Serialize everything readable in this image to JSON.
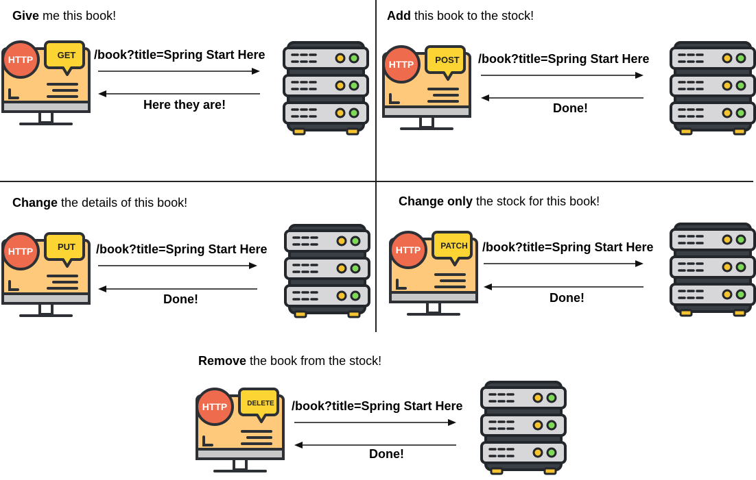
{
  "panels": [
    {
      "id": "get",
      "title_bold": "Give",
      "title_rest": " me this book!",
      "method": "GET",
      "url": "/book?title=Spring Start Here",
      "response": "Here they are!"
    },
    {
      "id": "post",
      "title_bold": "Add",
      "title_rest": " this book to the stock!",
      "method": "POST",
      "url": "/book?title=Spring Start Here",
      "response": "Done!"
    },
    {
      "id": "put",
      "title_bold": "Change",
      "title_rest": " the details of this book!",
      "method": "PUT",
      "url": "/book?title=Spring Start Here",
      "response": "Done!"
    },
    {
      "id": "patch",
      "title_bold": "Change only",
      "title_rest": " the stock for this book!",
      "method": "PATCH",
      "url": "/book?title=Spring Start Here",
      "response": "Done!"
    },
    {
      "id": "delete",
      "title_bold": "Remove",
      "title_rest": " the book from the stock!",
      "method": "DELETE",
      "url": "/book?title=Spring Start Here",
      "response": "Done!"
    }
  ],
  "client_label": "HTTP",
  "colors": {
    "http_badge": "#ee6b4d",
    "method_bubble": "#fcd535",
    "monitor_screen": "#fec97a",
    "monitor_dark": "#2d3035",
    "server_body": "#d7d7d9",
    "server_dark": "#3a3e45",
    "led_yellow": "#f5c430",
    "led_green": "#7ed957"
  }
}
